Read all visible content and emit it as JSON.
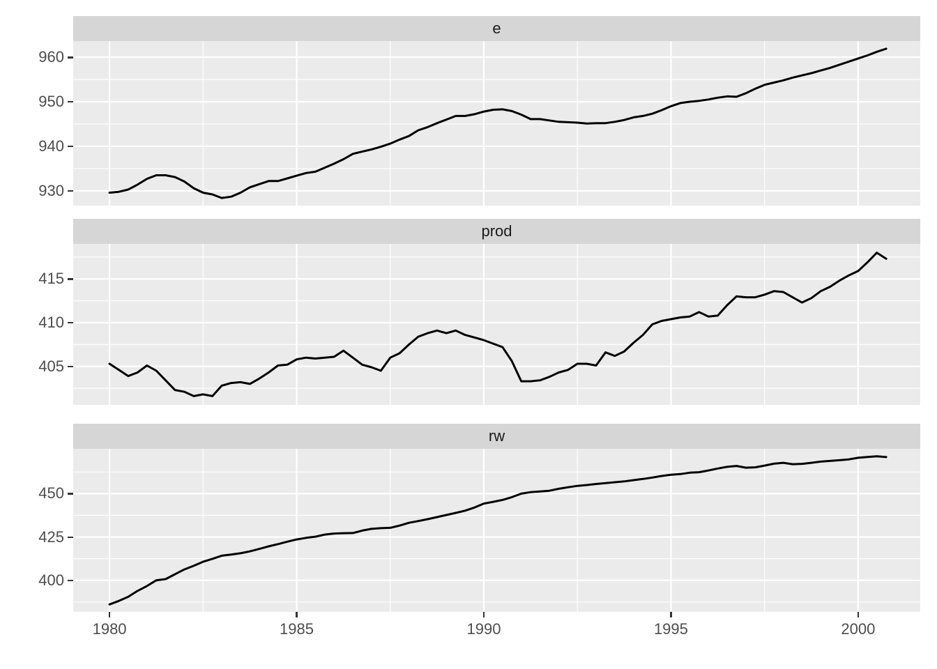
{
  "chart_data": {
    "type": "line",
    "title": "",
    "description": "Three stacked facet panels (ggplot2 theme_grey style), single black line per panel, shared quarterly x axis 1980-2000Q4",
    "legend": "none",
    "grid": "on",
    "colors": {
      "panel_bg": "#EBEBEB",
      "strip_bg": "#D6D6D6",
      "grid": "#FFFFFF",
      "line": "#000000",
      "axis_text": "#4D4D4D",
      "strip_text": "#1A1A1A",
      "tick": "#333333",
      "page_bg": "#FFFFFF"
    },
    "x_ticks": [
      1980,
      1985,
      1990,
      1995,
      2000
    ],
    "x_minor_ticks": [
      1982.5,
      1987.5,
      1992.5,
      1997.5
    ],
    "x_domain": [
      1979.03,
      2001.66
    ],
    "x": [
      1980.0,
      1980.25,
      1980.5,
      1980.75,
      1981.0,
      1981.25,
      1981.5,
      1981.75,
      1982.0,
      1982.25,
      1982.5,
      1982.75,
      1983.0,
      1983.25,
      1983.5,
      1983.75,
      1984.0,
      1984.25,
      1984.5,
      1984.75,
      1985.0,
      1985.25,
      1985.5,
      1985.75,
      1986.0,
      1986.25,
      1986.5,
      1986.75,
      1987.0,
      1987.25,
      1987.5,
      1987.75,
      1988.0,
      1988.25,
      1988.5,
      1988.75,
      1989.0,
      1989.25,
      1989.5,
      1989.75,
      1990.0,
      1990.25,
      1990.5,
      1990.75,
      1991.0,
      1991.25,
      1991.5,
      1991.75,
      1992.0,
      1992.25,
      1992.5,
      1992.75,
      1993.0,
      1993.25,
      1993.5,
      1993.75,
      1994.0,
      1994.25,
      1994.5,
      1994.75,
      1995.0,
      1995.25,
      1995.5,
      1995.75,
      1996.0,
      1996.25,
      1996.5,
      1996.75,
      1997.0,
      1997.25,
      1997.5,
      1997.75,
      1998.0,
      1998.25,
      1998.5,
      1998.75,
      1999.0,
      1999.25,
      1999.5,
      1999.75,
      2000.0,
      2000.25,
      2000.5,
      2000.75
    ],
    "facets": [
      {
        "label": "e",
        "y_ticks": [
          930,
          940,
          950,
          960
        ],
        "y_minor_ticks": [
          935,
          945,
          955
        ],
        "y_domain": [
          926.7,
          963.6
        ],
        "values": [
          929.6,
          929.8,
          930.3,
          931.4,
          932.7,
          933.5,
          933.5,
          933.1,
          932.1,
          930.6,
          929.6,
          929.2,
          928.4,
          928.7,
          929.6,
          930.8,
          931.5,
          932.2,
          932.2,
          932.8,
          933.4,
          934.0,
          934.3,
          935.2,
          936.1,
          937.1,
          938.3,
          938.8,
          939.3,
          939.9,
          940.6,
          941.5,
          942.3,
          943.6,
          944.3,
          945.2,
          946.0,
          946.8,
          946.8,
          947.2,
          947.8,
          948.2,
          948.3,
          947.9,
          947.1,
          946.1,
          946.1,
          945.8,
          945.5,
          945.4,
          945.3,
          945.1,
          945.2,
          945.2,
          945.5,
          945.9,
          946.5,
          946.8,
          947.3,
          948.1,
          949.0,
          949.7,
          950.0,
          950.2,
          950.5,
          950.9,
          951.2,
          951.1,
          951.9,
          952.9,
          953.8,
          954.3,
          954.8,
          955.4,
          955.9,
          956.4,
          957.0,
          957.6,
          958.3,
          959.0,
          959.7,
          960.4,
          961.2,
          961.9
        ]
      },
      {
        "label": "prod",
        "y_ticks": [
          405,
          410,
          415
        ],
        "y_minor_ticks": [
          402.5,
          407.5,
          412.5,
          417.5
        ],
        "y_domain": [
          400.6,
          419.0
        ],
        "values": [
          405.3,
          404.6,
          403.9,
          404.3,
          405.1,
          404.5,
          403.4,
          402.3,
          402.1,
          401.6,
          401.8,
          401.6,
          402.8,
          403.1,
          403.2,
          403.0,
          403.6,
          404.3,
          405.1,
          405.2,
          405.8,
          406.0,
          405.9,
          406.0,
          406.1,
          406.8,
          406.0,
          405.2,
          404.9,
          404.5,
          406.0,
          406.5,
          407.5,
          408.4,
          408.8,
          409.1,
          408.8,
          409.1,
          408.6,
          408.3,
          408.0,
          407.6,
          407.2,
          405.6,
          403.3,
          403.3,
          403.4,
          403.8,
          404.3,
          404.6,
          405.3,
          405.3,
          405.1,
          406.6,
          406.2,
          406.7,
          407.7,
          408.6,
          409.8,
          410.2,
          410.4,
          410.6,
          410.7,
          411.2,
          410.7,
          410.8,
          412.0,
          413.0,
          412.9,
          412.9,
          413.2,
          413.6,
          413.5,
          412.9,
          412.3,
          412.8,
          413.6,
          414.1,
          414.8,
          415.4,
          415.9,
          416.9,
          418.0,
          417.3
        ]
      },
      {
        "label": "rw",
        "y_ticks": [
          400,
          425,
          450
        ],
        "y_minor_ticks": [
          387.5,
          412.5,
          437.5,
          462.5
        ],
        "y_domain": [
          381.8,
          475.9
        ],
        "values": [
          386.1,
          388.1,
          390.5,
          393.9,
          396.7,
          400.0,
          400.7,
          403.5,
          406.3,
          408.4,
          410.7,
          412.4,
          414.2,
          414.9,
          415.6,
          416.7,
          418.1,
          419.6,
          420.9,
          422.3,
          423.6,
          424.5,
          425.2,
          426.4,
          427.0,
          427.2,
          427.3,
          428.7,
          429.7,
          430.1,
          430.3,
          431.6,
          433.2,
          434.2,
          435.3,
          436.5,
          437.7,
          438.9,
          440.2,
          442.0,
          444.3,
          445.3,
          446.4,
          448.0,
          450.0,
          450.9,
          451.3,
          451.7,
          452.8,
          453.7,
          454.5,
          455.0,
          455.6,
          456.1,
          456.6,
          457.1,
          457.8,
          458.5,
          459.3,
          460.2,
          460.9,
          461.3,
          462.1,
          462.4,
          463.4,
          464.5,
          465.5,
          466.0,
          465.0,
          465.2,
          466.2,
          467.3,
          467.8,
          467.0,
          467.2,
          467.8,
          468.5,
          468.9,
          469.3,
          469.8,
          470.7,
          471.2,
          471.6,
          471.1
        ]
      }
    ]
  }
}
